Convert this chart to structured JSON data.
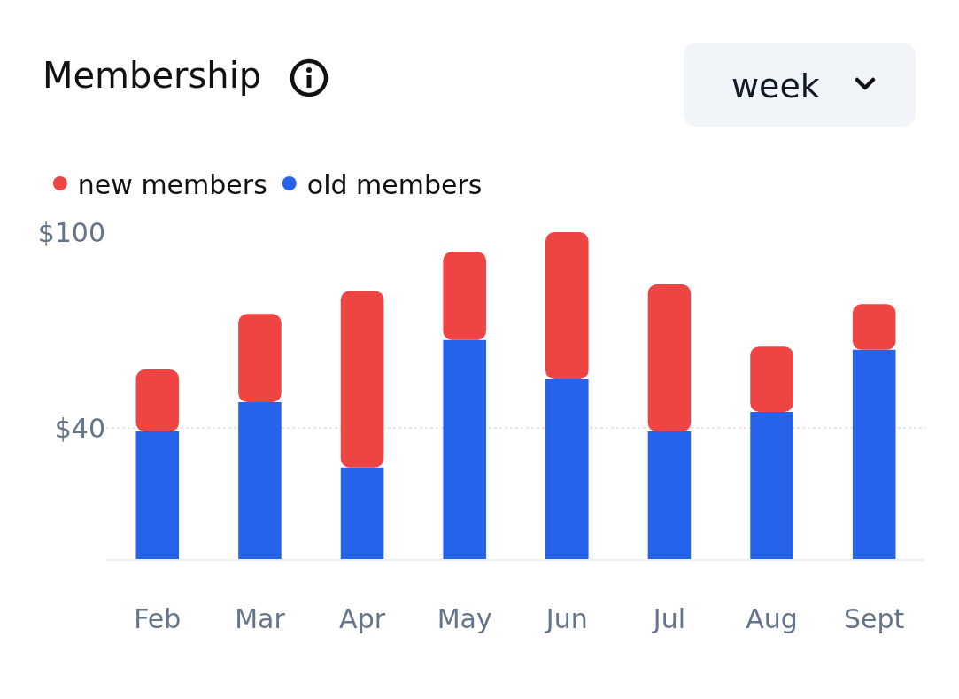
{
  "chart_data": {
    "type": "bar",
    "title": "Membership",
    "annotations": [
      "week"
    ],
    "categories": [
      "Feb",
      "Mar",
      "Apr",
      "May",
      "Jun",
      "Jul",
      "Aug",
      "Sept"
    ],
    "stacked": true,
    "series": [
      {
        "name": "old members",
        "color": "#2563eb",
        "values": [
          39,
          48,
          28,
          67,
          55,
          39,
          45,
          64
        ]
      },
      {
        "name": "new members",
        "color": "#ef4444",
        "values": [
          19,
          27,
          54,
          27,
          45,
          45,
          20,
          14
        ]
      }
    ],
    "ylim": [
      0,
      100
    ],
    "yticks": [
      {
        "value": 40,
        "label": "$40"
      },
      {
        "value": 100,
        "label": "$100"
      }
    ],
    "grid": "y",
    "legend": "top left"
  }
}
